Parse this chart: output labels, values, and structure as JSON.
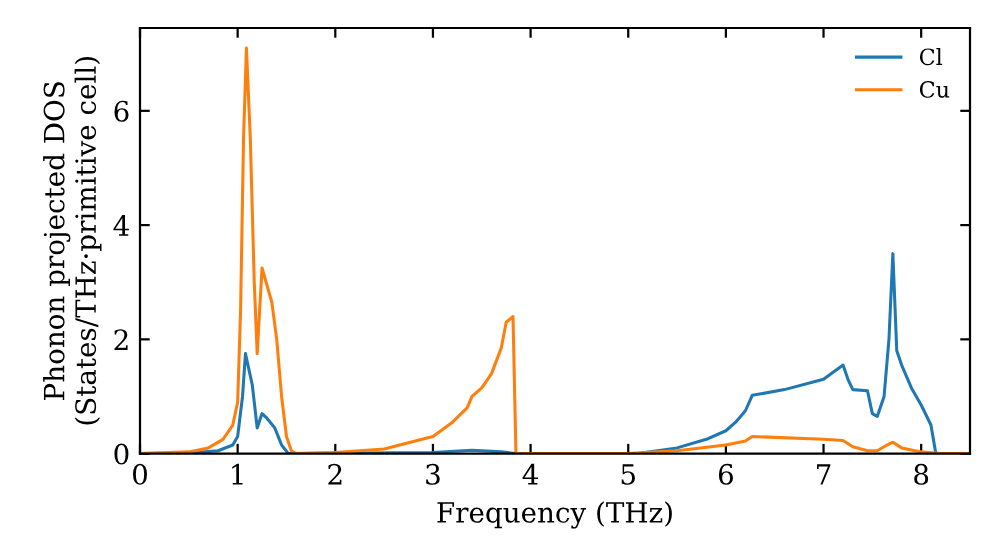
{
  "chart_data": {
    "type": "line",
    "xlabel": "Frequency (THz)",
    "ylabel": "Phonon projected DOS\n(States/THz·primitive cell)",
    "xlim": [
      0,
      8.5
    ],
    "ylim": [
      0,
      7.45
    ],
    "xticks": [
      0,
      1,
      2,
      3,
      4,
      5,
      6,
      7,
      8
    ],
    "yticks": [
      0,
      2,
      4,
      6
    ],
    "legend": "top right",
    "grid": false,
    "marker": "none",
    "line_style": "solid",
    "series": [
      {
        "name": "Cl",
        "color": "#1f77b4",
        "x": [
          0,
          0.5,
          0.8,
          0.95,
          1.0,
          1.05,
          1.08,
          1.15,
          1.2,
          1.25,
          1.3,
          1.38,
          1.45,
          1.52,
          3.0,
          3.4,
          3.7,
          3.85,
          5.1,
          5.5,
          5.8,
          6.0,
          6.1,
          6.2,
          6.27,
          6.6,
          7.0,
          7.2,
          7.25,
          7.3,
          7.45,
          7.5,
          7.55,
          7.62,
          7.67,
          7.71,
          7.75,
          7.8,
          7.9,
          8.0,
          8.1,
          8.15,
          8.5
        ],
        "values": [
          0,
          0.01,
          0.05,
          0.15,
          0.3,
          1.0,
          1.75,
          1.2,
          0.45,
          0.7,
          0.62,
          0.45,
          0.15,
          0,
          0.02,
          0.06,
          0.03,
          0,
          0,
          0.1,
          0.25,
          0.4,
          0.55,
          0.75,
          1.02,
          1.12,
          1.3,
          1.55,
          1.3,
          1.12,
          1.1,
          0.7,
          0.65,
          1.0,
          2.0,
          3.5,
          1.8,
          1.55,
          1.15,
          0.85,
          0.5,
          0,
          0
        ]
      },
      {
        "name": "Cu",
        "color": "#ff7f0e",
        "x": [
          0,
          0.5,
          0.7,
          0.85,
          0.95,
          1.0,
          1.03,
          1.06,
          1.09,
          1.13,
          1.17,
          1.2,
          1.25,
          1.3,
          1.35,
          1.4,
          1.45,
          1.5,
          1.55,
          1.6,
          2.0,
          2.5,
          3.0,
          3.2,
          3.35,
          3.4,
          3.5,
          3.6,
          3.7,
          3.75,
          3.82,
          3.85,
          5.0,
          5.5,
          6.0,
          6.2,
          6.27,
          7.0,
          7.2,
          7.3,
          7.45,
          7.55,
          7.65,
          7.71,
          7.8,
          8.0,
          8.2,
          8.5
        ],
        "values": [
          0,
          0.03,
          0.1,
          0.25,
          0.5,
          0.9,
          2.5,
          5.5,
          7.1,
          5.5,
          3.0,
          1.75,
          3.25,
          2.95,
          2.65,
          2.0,
          1.0,
          0.3,
          0.05,
          0,
          0.02,
          0.08,
          0.3,
          0.55,
          0.8,
          1.0,
          1.15,
          1.4,
          1.85,
          2.3,
          2.4,
          0,
          0,
          0.05,
          0.15,
          0.22,
          0.3,
          0.25,
          0.23,
          0.12,
          0.05,
          0.05,
          0.15,
          0.2,
          0.1,
          0.03,
          0,
          0
        ]
      }
    ]
  }
}
